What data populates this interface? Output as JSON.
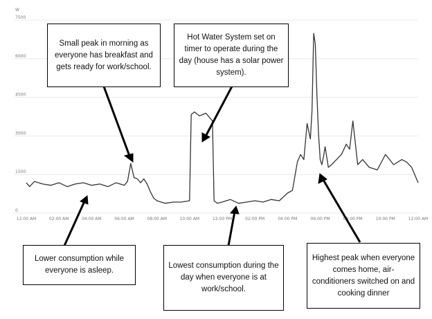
{
  "chart_data": {
    "type": "line",
    "title": "",
    "xlabel": "",
    "ylabel": "W",
    "ylim": [
      0,
      7500
    ],
    "yticks": [
      "0",
      "1500",
      "3000",
      "4500",
      "6000",
      "7500"
    ],
    "xticks": [
      "12:00 AM",
      "02:00 AM",
      "04:00 AM",
      "06:00 AM",
      "08:00 AM",
      "10:00 AM",
      "12:00 PM",
      "02:00 PM",
      "04:00 PM",
      "06:00 PM",
      "08:00 PM",
      "10:00 PM",
      "12:00 AM"
    ],
    "grid": "horizontal",
    "colors": {
      "line": "#333333",
      "grid": "#e3e3e3",
      "tick": "#777777"
    },
    "series": [
      {
        "x": [
          0,
          0.2,
          0.5,
          1,
          1.5,
          2,
          2.5,
          3,
          3.5,
          4,
          4.5,
          5,
          5.5,
          6,
          6.2,
          6.4,
          6.6,
          6.8,
          7,
          7.2,
          7.4,
          7.6,
          7.8,
          8,
          8.5,
          9,
          9.5,
          10,
          10.1,
          10.3,
          10.6,
          11,
          11.4,
          11.5,
          11.7,
          12,
          12.5,
          13,
          13.5,
          14,
          14.5,
          15,
          15.5,
          16,
          16.3,
          16.6,
          16.8,
          17,
          17.2,
          17.4,
          17.5,
          17.6,
          17.7,
          17.8,
          17.9,
          18,
          18.1,
          18.2,
          18.3,
          18.5,
          18.7,
          19,
          19.3,
          19.6,
          19.8,
          20,
          20.3,
          20.6,
          21,
          21.5,
          22,
          22.5,
          23,
          23.3,
          23.6,
          23.8,
          24
        ],
        "y": [
          1100,
          950,
          1150,
          1050,
          1000,
          1100,
          950,
          1050,
          1100,
          1000,
          1050,
          950,
          1100,
          1000,
          1150,
          1850,
          1300,
          1250,
          1100,
          1250,
          1050,
          750,
          500,
          400,
          300,
          350,
          350,
          400,
          3750,
          3850,
          3700,
          3800,
          3500,
          400,
          300,
          350,
          450,
          300,
          350,
          400,
          350,
          450,
          400,
          700,
          800,
          1900,
          2200,
          2000,
          3400,
          2800,
          3900,
          6900,
          6500,
          4500,
          3000,
          2000,
          1800,
          2100,
          2500,
          1700,
          1800,
          2000,
          2200,
          2600,
          2400,
          3500,
          1800,
          2000,
          1700,
          1600,
          2200,
          1800,
          2000,
          1900,
          1700,
          1400,
          1100
        ]
      }
    ]
  },
  "annotations": {
    "morning": "Small peak in morning as everyone has breakfast and gets ready for work/school.",
    "hotwater": "Hot Water System set on timer to operate during the day (house has a solar power system).",
    "asleep": "Lower consumption while everyone is asleep.",
    "lowest": "Lowest consumption during the day when everyone is at work/school.",
    "highest": "Highest peak when everyone comes home, air-conditioners switched on and cooking dinner"
  }
}
